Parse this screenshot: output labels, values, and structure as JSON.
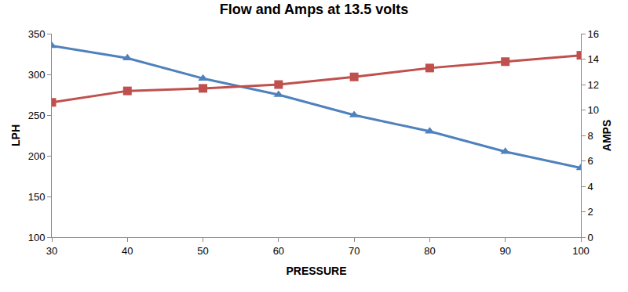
{
  "chart_data": {
    "type": "line",
    "title": "Flow and Amps at 13.5 volts",
    "x_label": "PRESSURE",
    "y_label": "LPH",
    "y2_label": "AMPS",
    "x": [
      30,
      40,
      50,
      60,
      70,
      80,
      90,
      100
    ],
    "series": [
      {
        "color": "#4f81bd",
        "marker": "triangle",
        "values": [
          335,
          320,
          295,
          275,
          250,
          230,
          205,
          185
        ]
      },
      {
        "color": "#c0504d",
        "marker": "square",
        "axis": "y2",
        "values": [
          10.6,
          11.5,
          11.7,
          12.0,
          12.6,
          13.3,
          13.8,
          14.3
        ]
      }
    ],
    "xlim": [
      30,
      100
    ],
    "xticks": [
      30,
      40,
      50,
      60,
      70,
      80,
      90,
      100
    ],
    "ylim": [
      100,
      350
    ],
    "yticks": [
      100,
      150,
      200,
      250,
      300,
      350
    ],
    "y2lim": [
      0,
      16
    ],
    "y2ticks": [
      0,
      2,
      4,
      6,
      8,
      10,
      12,
      14,
      16
    ],
    "grid": false,
    "legend": "none"
  }
}
